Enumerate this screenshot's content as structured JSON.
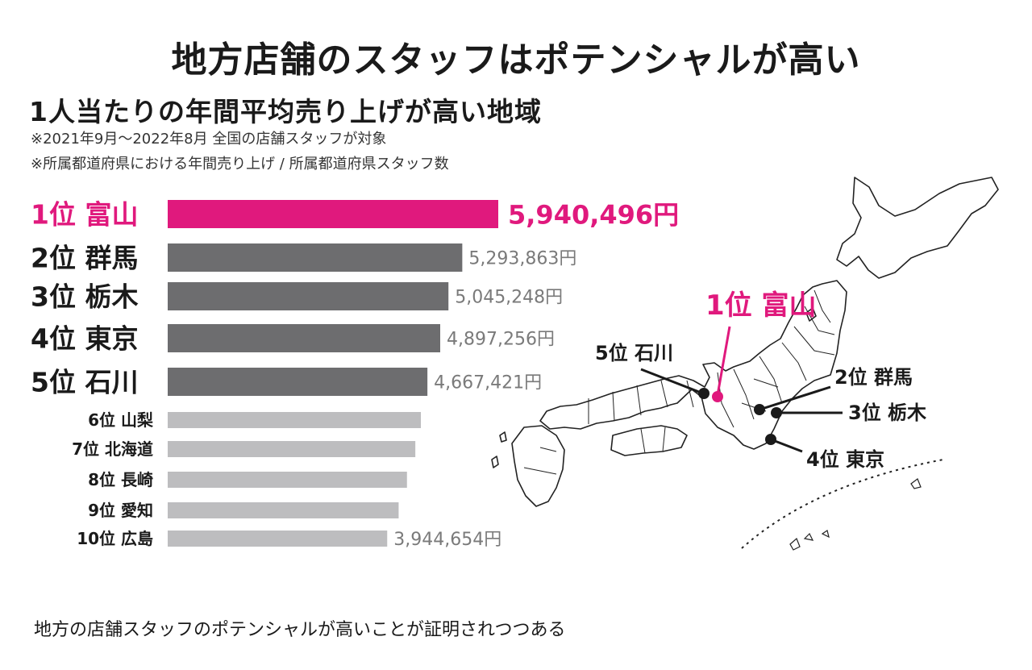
{
  "headline": "地方店舗のスタッフはポテンシャルが高い",
  "subtitle": "1人当たりの年間平均売り上げが高い地域",
  "notes": [
    "※2021年9月〜2022年8月 全国の店舗スタッフが対象",
    "※所属都道府県における年間売り上げ / 所属都道府県スタッフ数"
  ],
  "footer": "地方の店舗スタッフのポテンシャルが高いことが証明されつつある",
  "colors": {
    "first": "#e0197d",
    "top5": "#6d6d6f",
    "rest": "#bdbdbf",
    "value_text": "#7a7a7a"
  },
  "chart_data": {
    "type": "bar",
    "orientation": "horizontal",
    "categories": [
      "1位 富山",
      "2位 群馬",
      "3位 栃木",
      "4位 東京",
      "5位 石川",
      "6位 山梨",
      "7位 北海道",
      "8位 長崎",
      "9位 愛知",
      "10位 広島"
    ],
    "values": [
      5940496,
      5293863,
      5045248,
      4897256,
      4667421,
      4550000,
      4450000,
      4300000,
      4150000,
      3944654
    ],
    "value_labels": [
      "5,940,496円",
      "5,293,863円",
      "5,045,248円",
      "4,897,256円",
      "4,667,421円",
      "",
      "",
      "",
      "",
      "3,944,654円"
    ],
    "unit": "円"
  },
  "map": {
    "callouts": [
      {
        "label": "1位 富山",
        "highlight": true
      },
      {
        "label": "5位 石川",
        "highlight": false
      },
      {
        "label": "2位 群馬",
        "highlight": false
      },
      {
        "label": "3位 栃木",
        "highlight": false
      },
      {
        "label": "4位 東京",
        "highlight": false
      }
    ]
  }
}
